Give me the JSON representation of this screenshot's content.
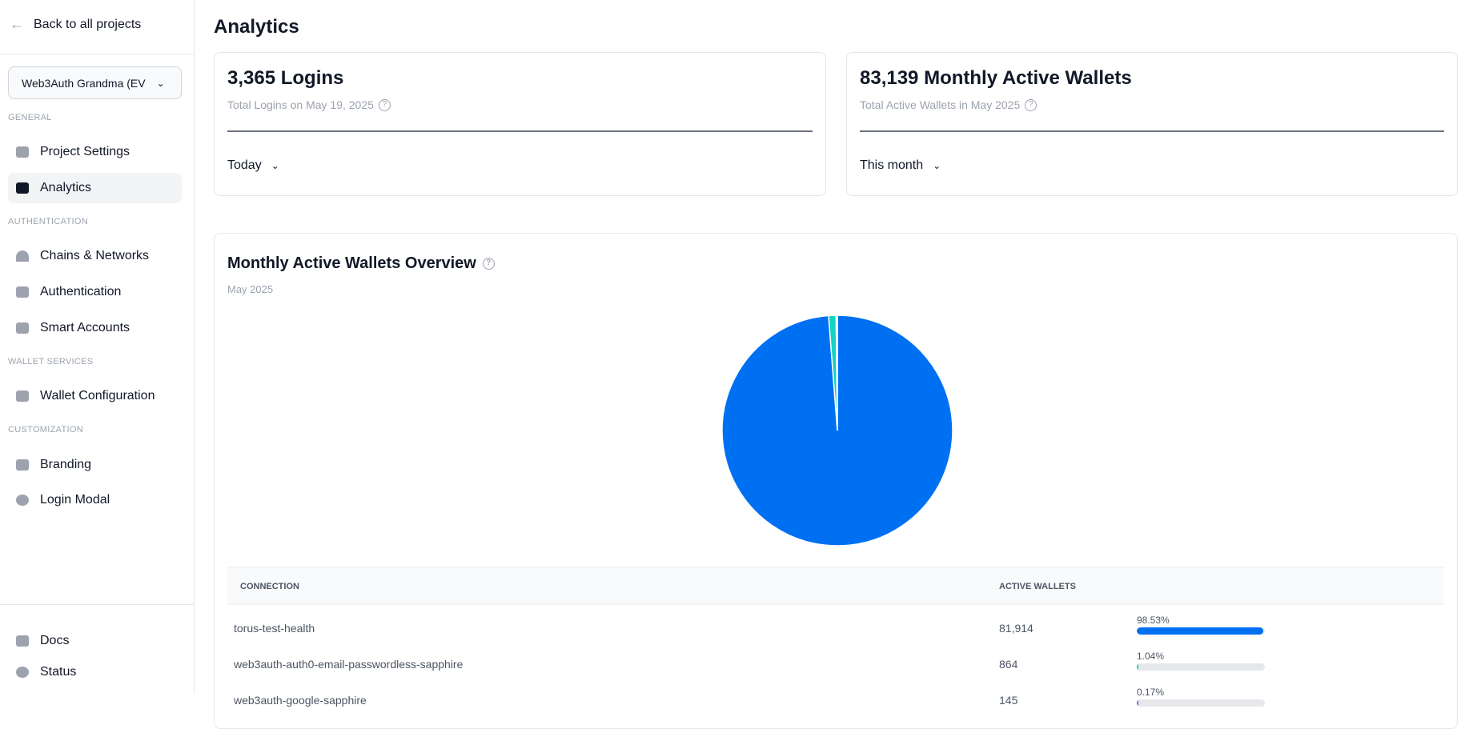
{
  "sidebar": {
    "back": "Back to all projects",
    "project": "Web3Auth Grandma (EV",
    "sections": {
      "general": "GENERAL",
      "authentication": "AUTHENTICATION",
      "wallet_services": "WALLET SERVICES",
      "customization": "CUSTOMIZATION"
    },
    "items": {
      "project_settings": "Project Settings",
      "analytics": "Analytics",
      "chains": "Chains & Networks",
      "authentication": "Authentication",
      "smart_accounts": "Smart Accounts",
      "wallet_config": "Wallet Configuration",
      "branding": "Branding",
      "login_modal": "Login Modal",
      "docs": "Docs",
      "status": "Status"
    },
    "active": "Analytics"
  },
  "main": {
    "title": "Analytics",
    "logins": {
      "value": "3,365 Logins",
      "subtitle": "Total Logins on May 19, 2025",
      "range": "Today"
    },
    "wallets": {
      "value": "83,139 Monthly Active Wallets",
      "subtitle": "Total Active Wallets in May 2025",
      "range": "This month"
    },
    "overview": {
      "title": "Monthly Active Wallets Overview",
      "subtitle": "May 2025"
    },
    "table": {
      "headers": {
        "connection": "CONNECTION",
        "active": "ACTIVE WALLETS"
      },
      "rows": [
        {
          "connection": "torus-test-health",
          "active": "81,914",
          "pct": "98.53%",
          "fraction": 0.9853,
          "color": "#0070f3"
        },
        {
          "connection": "web3auth-auth0-email-passwordless-sapphire",
          "active": "864",
          "pct": "1.04%",
          "fraction": 0.0104,
          "color": "#14d3c0"
        },
        {
          "connection": "web3auth-google-sapphire",
          "active": "145",
          "pct": "0.17%",
          "fraction": 0.0017,
          "color": "#8b5cf6"
        }
      ]
    }
  },
  "chart_data": {
    "type": "pie",
    "categories": [
      "torus-test-health",
      "web3auth-auth0-email-passwordless-sapphire",
      "web3auth-google-sapphire"
    ],
    "values": [
      81914,
      864,
      145
    ],
    "colors": [
      "#0070f3",
      "#14d3c0",
      "#8b5cf6"
    ]
  }
}
